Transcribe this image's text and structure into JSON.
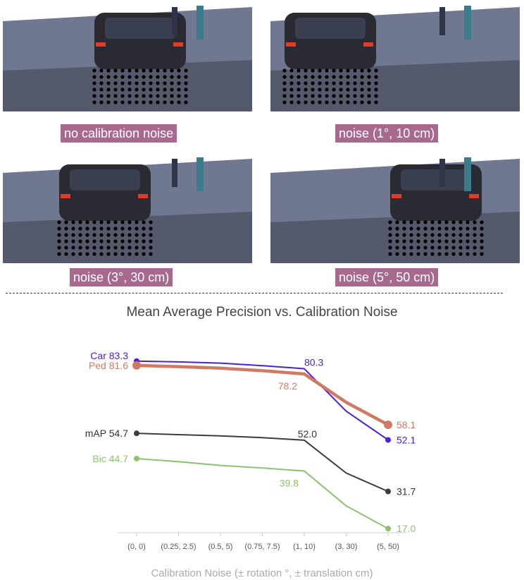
{
  "panels": [
    {
      "caption": "no calibration noise"
    },
    {
      "caption": "noise (1°, 10 cm)"
    },
    {
      "caption": "noise (3°, 30 cm)"
    },
    {
      "caption": "noise (5°, 50 cm)"
    }
  ],
  "chart_data": {
    "type": "line",
    "title": "Mean Average Precision vs. Calibration Noise",
    "xlabel": "Calibration Noise (± rotation °, ± translation cm)",
    "ylabel": "",
    "categories": [
      "(0, 0)",
      "(0.25, 2.5)",
      "(0.5, 5)",
      "(0.75, 7.5)",
      "(1, 10)",
      "(3, 30)",
      "(5, 50)"
    ],
    "ylim": [
      0,
      100
    ],
    "grid": false,
    "series": [
      {
        "name": "Car",
        "color": "#4a1fe0",
        "values": [
          83.3,
          83.0,
          82.5,
          81.5,
          80.3,
          63.5,
          52.1
        ],
        "labels": {
          "0": "83.3",
          "4": "80.3",
          "6": "52.1"
        }
      },
      {
        "name": "Ped",
        "color": "#d07a66",
        "values": [
          81.6,
          81.1,
          80.5,
          79.5,
          78.2,
          67.0,
          58.1
        ],
        "labels": {
          "0": "81.6",
          "4": "78.2",
          "6": "58.1"
        }
      },
      {
        "name": "mAP",
        "color": "#3c3c3c",
        "values": [
          54.7,
          54.2,
          53.7,
          53.0,
          52.0,
          39.0,
          31.7
        ],
        "labels": {
          "0": "54.7",
          "4": "52.0",
          "6": "31.7"
        }
      },
      {
        "name": "Bic",
        "color": "#8dc26f",
        "values": [
          44.7,
          43.5,
          42.0,
          41.0,
          39.8,
          26.0,
          17.0
        ],
        "labels": {
          "0": "44.7",
          "4": "39.8",
          "6": "17.0"
        }
      }
    ]
  }
}
